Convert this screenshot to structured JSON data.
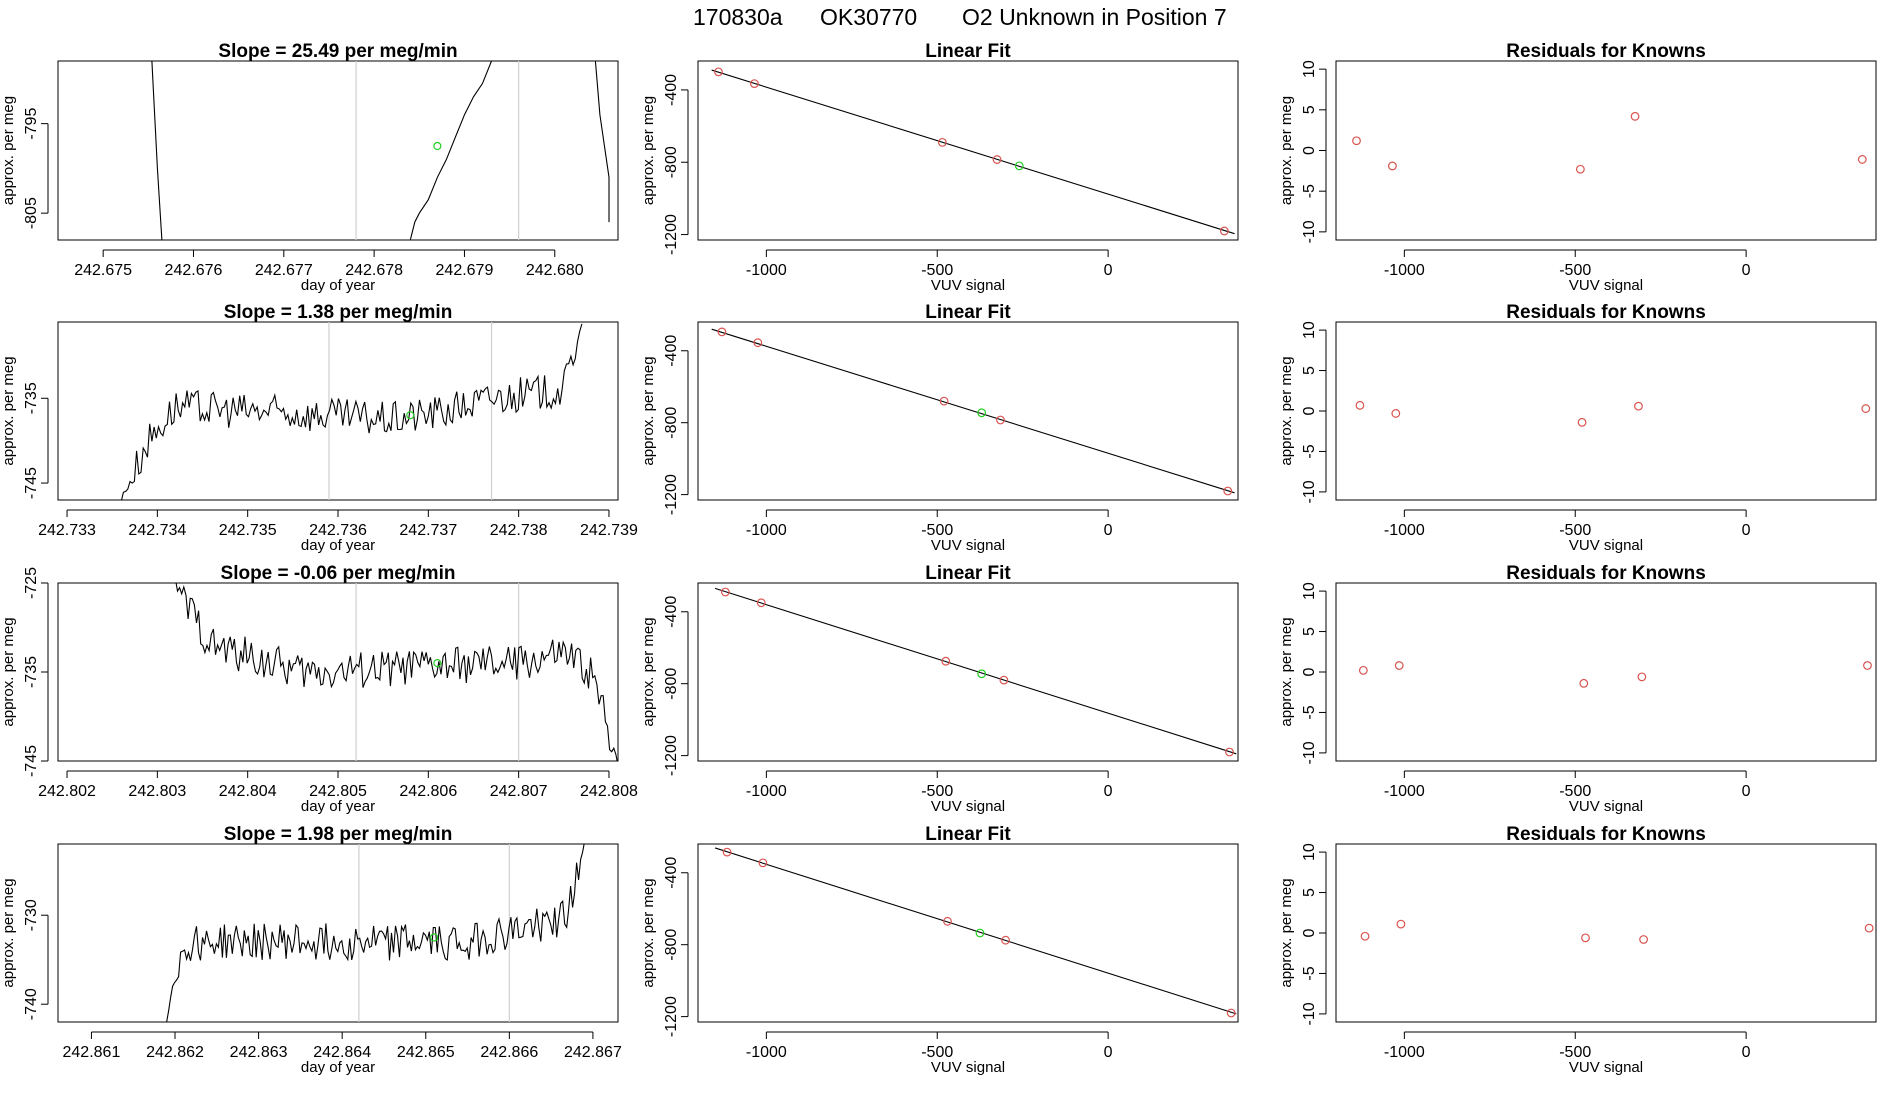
{
  "title": {
    "run_id": "170830a",
    "tank_id": "OK30770",
    "description": "O2 Unknown in Position  7"
  },
  "colors": {
    "known_points": "#d9534f",
    "unknown_point": "#22cc22",
    "trace": "#000000",
    "marker_lines": "#cfcfcf"
  },
  "chart_data": [
    {
      "type": "line",
      "title": "Slope =  25.49  per meg/min",
      "xlabel": "day of year",
      "ylabel": "approx. per meg",
      "xlim": [
        242.6745,
        242.6807
      ],
      "ylim": [
        -808,
        -788
      ],
      "x_ticks": [
        "242.675",
        "242.676",
        "242.677",
        "242.678",
        "242.679",
        "242.680"
      ],
      "y_ticks": [
        "-795",
        "-805"
      ],
      "markers": [
        242.6778,
        242.6796
      ],
      "unknown_point": {
        "x": 242.6787,
        "y": -797.5
      },
      "trace_segments": [
        [
          [
            242.6755,
            -780
          ],
          [
            242.67555,
            -790
          ],
          [
            242.6756,
            -800
          ],
          [
            242.67565,
            -808
          ]
        ],
        [
          [
            242.6784,
            -808
          ],
          [
            242.67845,
            -806
          ],
          [
            242.6785,
            -805
          ],
          [
            242.6786,
            -803.5
          ],
          [
            242.6787,
            -801
          ],
          [
            242.6788,
            -799
          ],
          [
            242.6789,
            -796.5
          ],
          [
            242.679,
            -794
          ],
          [
            242.6791,
            -792
          ],
          [
            242.6792,
            -790.5
          ],
          [
            242.6793,
            -788
          ]
        ],
        [
          [
            242.68045,
            -788
          ],
          [
            242.6805,
            -794
          ],
          [
            242.6806,
            -801
          ],
          [
            242.6806,
            -806
          ]
        ]
      ]
    },
    {
      "type": "scatter",
      "title": "Linear Fit",
      "xlabel": "VUV signal",
      "ylabel": "approx. per meg",
      "xlim": [
        -1200,
        380
      ],
      "ylim": [
        -1230,
        -240
      ],
      "x_ticks": [
        "-1000",
        "-500",
        "0"
      ],
      "y_ticks": [
        "-400",
        "-800",
        "-1200"
      ],
      "known_points": [
        [
          -1140,
          -300
        ],
        [
          -1035,
          -365
        ],
        [
          -485,
          -690
        ],
        [
          -325,
          -785
        ],
        [
          340,
          -1180
        ]
      ],
      "unknown_point": {
        "x": -260,
        "y": -820
      },
      "fit_line": [
        [
          -1160,
          -290
        ],
        [
          370,
          -1195
        ]
      ]
    },
    {
      "type": "scatter",
      "title": "Residuals for Knowns",
      "xlabel": "VUV signal",
      "ylabel": "approx. per meg",
      "xlim": [
        -1200,
        380
      ],
      "ylim": [
        -11,
        11
      ],
      "x_ticks": [
        "-1000",
        "-500",
        "0"
      ],
      "y_ticks": [
        "10",
        "5",
        "0",
        "-5",
        "-10"
      ],
      "known_points": [
        [
          -1140,
          1.2
        ],
        [
          -1035,
          -1.9
        ],
        [
          -485,
          -2.3
        ],
        [
          -325,
          4.2
        ],
        [
          340,
          -1.1
        ]
      ]
    },
    {
      "type": "line",
      "title": "Slope =  1.38  per meg/min",
      "xlabel": "day of year",
      "ylabel": "approx. per meg",
      "xlim": [
        242.7329,
        242.7391
      ],
      "ylim": [
        -747,
        -726
      ],
      "x_ticks": [
        "242.733",
        "242.734",
        "242.735",
        "242.736",
        "242.737",
        "242.738",
        "242.739"
      ],
      "y_ticks": [
        "-735",
        "-745"
      ],
      "markers": [
        242.7359,
        242.7377
      ],
      "unknown_point": {
        "x": 242.7368,
        "y": -737
      },
      "trace_start": [
        242.7336,
        242.7387
      ],
      "trace_levels": [
        [
          242.7336,
          -747
        ],
        [
          242.7339,
          -740
        ],
        [
          242.7342,
          -736
        ],
        [
          242.7366,
          -737.5
        ],
        [
          242.7372,
          -736.5
        ],
        [
          242.7377,
          -735
        ],
        [
          242.7385,
          -734
        ],
        [
          242.7387,
          -726
        ]
      ]
    },
    {
      "type": "scatter",
      "title": "Linear Fit",
      "xlabel": "VUV signal",
      "ylabel": "approx. per meg",
      "xlim": [
        -1200,
        380
      ],
      "ylim": [
        -1230,
        -240
      ],
      "x_ticks": [
        "-1000",
        "-500",
        "0"
      ],
      "y_ticks": [
        "-400",
        "-800",
        "-1200"
      ],
      "known_points": [
        [
          -1130,
          -295
        ],
        [
          -1025,
          -355
        ],
        [
          -480,
          -680
        ],
        [
          -315,
          -785
        ],
        [
          350,
          -1180
        ]
      ],
      "unknown_point": {
        "x": -370,
        "y": -745
      },
      "fit_line": [
        [
          -1160,
          -280
        ],
        [
          370,
          -1190
        ]
      ]
    },
    {
      "type": "scatter",
      "title": "Residuals for Knowns",
      "xlabel": "VUV signal",
      "ylabel": "approx. per meg",
      "xlim": [
        -1200,
        380
      ],
      "ylim": [
        -11,
        11
      ],
      "x_ticks": [
        "-1000",
        "-500",
        "0"
      ],
      "y_ticks": [
        "10",
        "5",
        "0",
        "-5",
        "-10"
      ],
      "known_points": [
        [
          -1130,
          0.7
        ],
        [
          -1025,
          -0.3
        ],
        [
          -480,
          -1.4
        ],
        [
          -315,
          0.6
        ],
        [
          350,
          0.3
        ]
      ]
    },
    {
      "type": "line",
      "title": "Slope =  -0.06  per meg/min",
      "xlabel": "day of year",
      "ylabel": "approx. per meg",
      "xlim": [
        242.8019,
        242.8081
      ],
      "ylim": [
        -745,
        -725
      ],
      "x_ticks": [
        "242.802",
        "242.803",
        "242.804",
        "242.805",
        "242.806",
        "242.807",
        "242.808"
      ],
      "y_ticks": [
        "-725",
        "-735",
        "-745"
      ],
      "markers": [
        242.8052,
        242.807
      ],
      "unknown_point": {
        "x": 242.8061,
        "y": -734
      },
      "trace_start": [
        242.8032,
        242.8081
      ],
      "trace_levels": [
        [
          242.8032,
          -725
        ],
        [
          242.8033,
          -727
        ],
        [
          242.8036,
          -732
        ],
        [
          242.8046,
          -735
        ],
        [
          242.807,
          -734
        ],
        [
          242.8075,
          -733
        ],
        [
          242.8078,
          -735
        ],
        [
          242.8081,
          -745
        ]
      ]
    },
    {
      "type": "scatter",
      "title": "Linear Fit",
      "xlabel": "VUV signal",
      "ylabel": "approx. per meg",
      "xlim": [
        -1200,
        380
      ],
      "ylim": [
        -1230,
        -240
      ],
      "x_ticks": [
        "-1000",
        "-500",
        "0"
      ],
      "y_ticks": [
        "-400",
        "-800",
        "-1200"
      ],
      "known_points": [
        [
          -1120,
          -290
        ],
        [
          -1015,
          -350
        ],
        [
          -475,
          -675
        ],
        [
          -305,
          -780
        ],
        [
          355,
          -1180
        ]
      ],
      "unknown_point": {
        "x": -370,
        "y": -745
      },
      "fit_line": [
        [
          -1150,
          -270
        ],
        [
          375,
          -1190
        ]
      ]
    },
    {
      "type": "scatter",
      "title": "Residuals for Knowns",
      "xlabel": "VUV signal",
      "ylabel": "approx. per meg",
      "xlim": [
        -1200,
        380
      ],
      "ylim": [
        -11,
        11
      ],
      "x_ticks": [
        "-1000",
        "-500",
        "0"
      ],
      "y_ticks": [
        "10",
        "5",
        "0",
        "-5",
        "-10"
      ],
      "known_points": [
        [
          -1120,
          0.2
        ],
        [
          -1015,
          0.8
        ],
        [
          -475,
          -1.4
        ],
        [
          -305,
          -0.6
        ],
        [
          355,
          0.8
        ]
      ]
    },
    {
      "type": "line",
      "title": "Slope =  1.98  per meg/min",
      "xlabel": "day of year",
      "ylabel": "approx. per meg",
      "xlim": [
        242.8606,
        242.8673
      ],
      "ylim": [
        -742,
        -722
      ],
      "x_ticks": [
        "242.861",
        "242.862",
        "242.863",
        "242.864",
        "242.865",
        "242.866",
        "242.867"
      ],
      "y_ticks": [
        "-730",
        "-740"
      ],
      "markers": [
        242.8642,
        242.866
      ],
      "unknown_point": {
        "x": 242.8651,
        "y": -732.5
      },
      "trace_start": [
        242.8619,
        242.8669
      ],
      "trace_levels": [
        [
          242.8619,
          -742
        ],
        [
          242.862,
          -736
        ],
        [
          242.8622,
          -733
        ],
        [
          242.8655,
          -733
        ],
        [
          242.8662,
          -731.5
        ],
        [
          242.8667,
          -730
        ],
        [
          242.8669,
          -722
        ]
      ]
    },
    {
      "type": "scatter",
      "title": "Linear Fit",
      "xlabel": "VUV signal",
      "ylabel": "approx. per meg",
      "xlim": [
        -1200,
        380
      ],
      "ylim": [
        -1230,
        -240
      ],
      "x_ticks": [
        "-1000",
        "-500",
        "0"
      ],
      "y_ticks": [
        "-400",
        "-800",
        "-1200"
      ],
      "known_points": [
        [
          -1115,
          -285
        ],
        [
          -1010,
          -345
        ],
        [
          -470,
          -670
        ],
        [
          -300,
          -775
        ],
        [
          360,
          -1180
        ]
      ],
      "unknown_point": {
        "x": -375,
        "y": -735
      },
      "fit_line": [
        [
          -1150,
          -262
        ],
        [
          375,
          -1185
        ]
      ]
    },
    {
      "type": "scatter",
      "title": "Residuals for Knowns",
      "xlabel": "VUV signal",
      "ylabel": "approx. per meg",
      "xlim": [
        -1200,
        380
      ],
      "ylim": [
        -11,
        11
      ],
      "x_ticks": [
        "-1000",
        "-500",
        "0"
      ],
      "y_ticks": [
        "10",
        "5",
        "0",
        "-5",
        "-10"
      ],
      "known_points": [
        [
          -1115,
          -0.4
        ],
        [
          -1010,
          1.1
        ],
        [
          -470,
          -0.6
        ],
        [
          -300,
          -0.8
        ],
        [
          360,
          0.6
        ]
      ]
    }
  ]
}
